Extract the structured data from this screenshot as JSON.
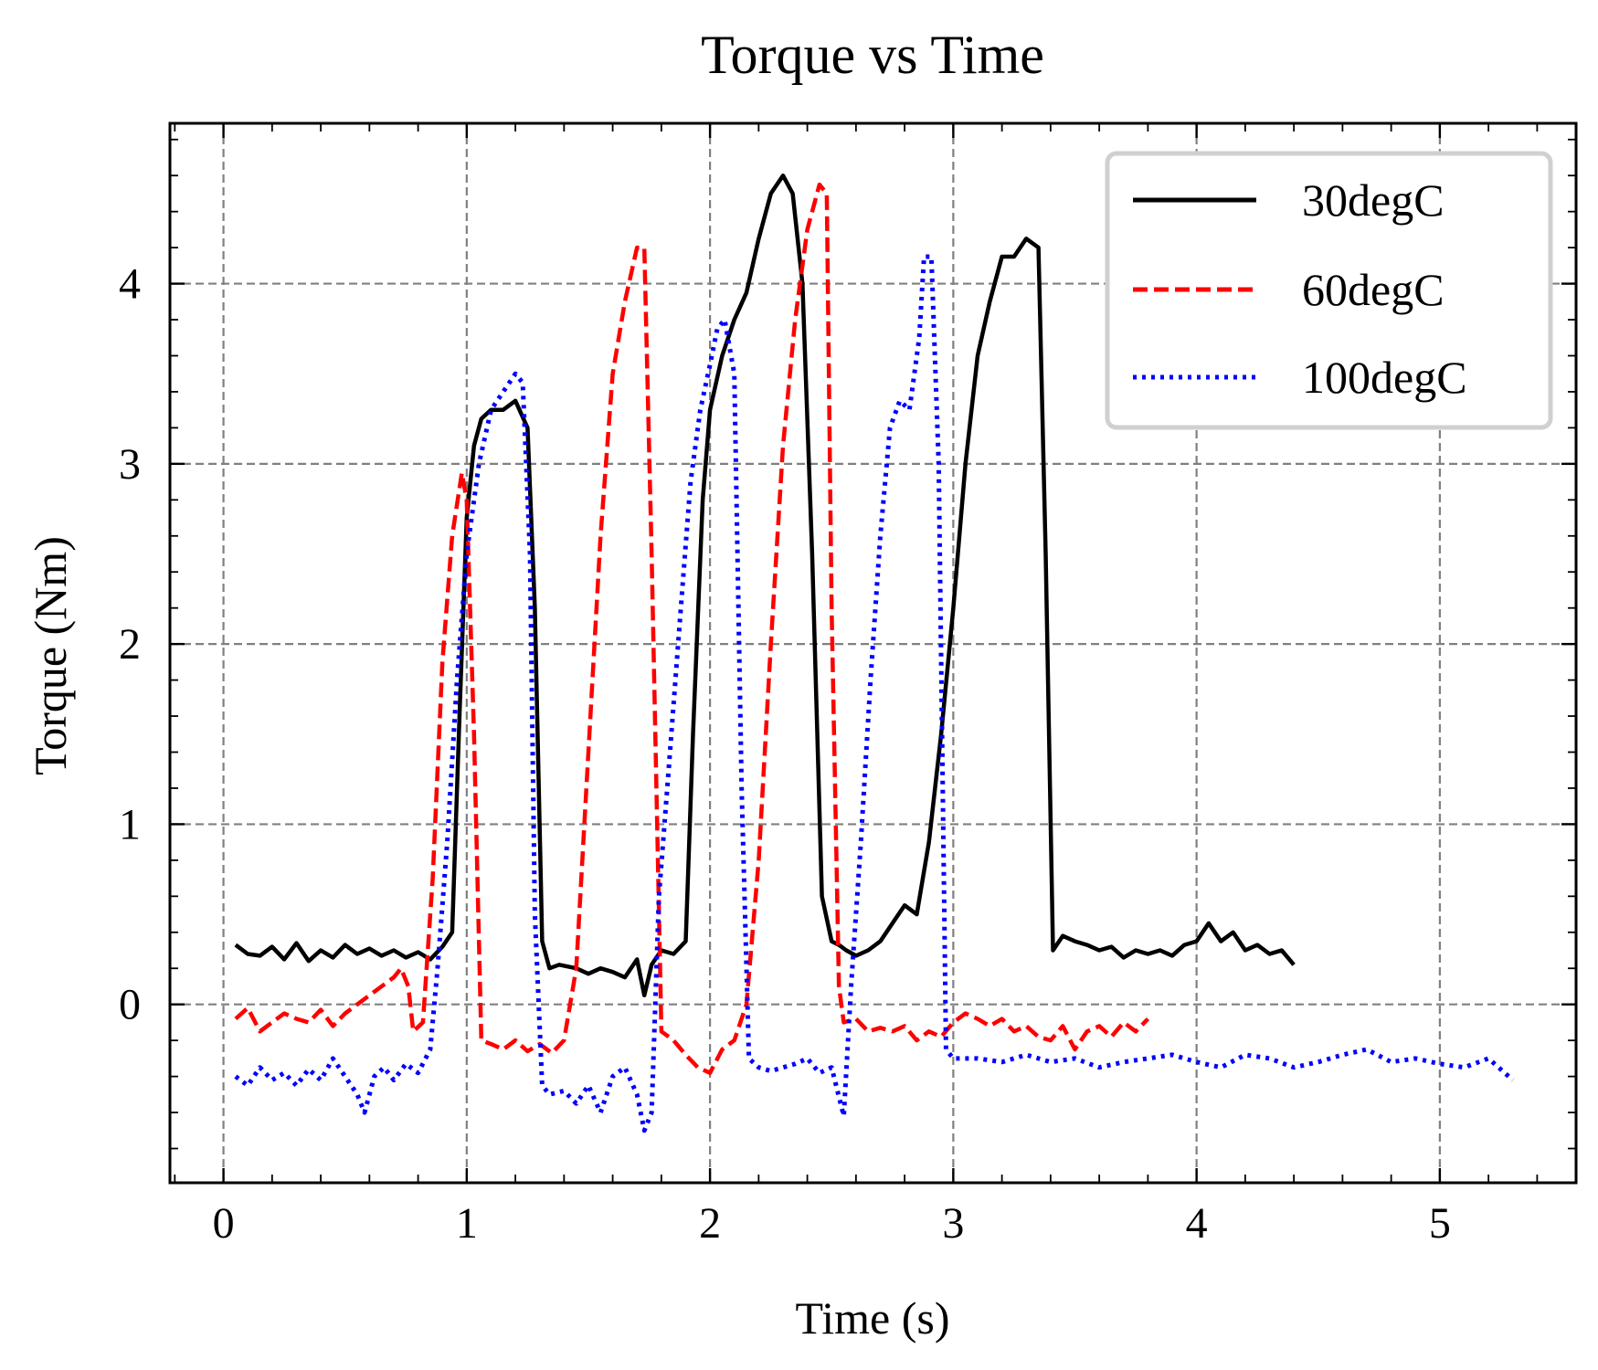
{
  "chart_data": {
    "type": "line",
    "title": "Torque vs Time",
    "xlabel": "Time (s)",
    "ylabel": "Torque (Nm)",
    "xlim": [
      -0.22,
      5.56
    ],
    "ylim": [
      -0.99,
      4.89
    ],
    "xticks": [
      0,
      1,
      2,
      3,
      4,
      5
    ],
    "yticks": [
      0,
      1,
      2,
      3,
      4
    ],
    "xtick_labels": [
      "0",
      "1",
      "2",
      "3",
      "4",
      "5"
    ],
    "ytick_labels": [
      "0",
      "1",
      "2",
      "3",
      "4"
    ],
    "x_minor_step": 0.2,
    "y_minor_step": 0.2,
    "grid": true,
    "legend_position": "top-right",
    "series": [
      {
        "name": "30degC",
        "color": "#000000",
        "style": "solid",
        "x": [
          0.05,
          0.1,
          0.15,
          0.2,
          0.25,
          0.3,
          0.35,
          0.4,
          0.45,
          0.5,
          0.55,
          0.6,
          0.65,
          0.7,
          0.75,
          0.8,
          0.85,
          0.9,
          0.94,
          0.97,
          1.0,
          1.03,
          1.06,
          1.1,
          1.15,
          1.2,
          1.25,
          1.28,
          1.31,
          1.34,
          1.38,
          1.45,
          1.5,
          1.55,
          1.6,
          1.65,
          1.7,
          1.73,
          1.76,
          1.8,
          1.85,
          1.9,
          1.93,
          1.97,
          2.0,
          2.05,
          2.1,
          2.15,
          2.2,
          2.25,
          2.3,
          2.34,
          2.38,
          2.42,
          2.46,
          2.5,
          2.53,
          2.56,
          2.6,
          2.65,
          2.7,
          2.75,
          2.8,
          2.85,
          2.9,
          2.95,
          3.0,
          3.05,
          3.1,
          3.15,
          3.2,
          3.25,
          3.3,
          3.35,
          3.38,
          3.41,
          3.45,
          3.5,
          3.55,
          3.6,
          3.65,
          3.7,
          3.75,
          3.8,
          3.85,
          3.9,
          3.95,
          4.0,
          4.05,
          4.1,
          4.15,
          4.2,
          4.25,
          4.3,
          4.35,
          4.4
        ],
        "values": [
          0.33,
          0.28,
          0.27,
          0.32,
          0.25,
          0.34,
          0.24,
          0.3,
          0.26,
          0.33,
          0.28,
          0.31,
          0.27,
          0.3,
          0.26,
          0.29,
          0.25,
          0.32,
          0.4,
          1.6,
          2.7,
          3.1,
          3.25,
          3.3,
          3.3,
          3.35,
          3.2,
          2.2,
          0.35,
          0.2,
          0.22,
          0.2,
          0.17,
          0.2,
          0.18,
          0.15,
          0.25,
          0.05,
          0.22,
          0.3,
          0.28,
          0.35,
          1.5,
          2.8,
          3.3,
          3.6,
          3.8,
          3.95,
          4.25,
          4.5,
          4.6,
          4.5,
          4.0,
          2.5,
          0.6,
          0.35,
          0.33,
          0.3,
          0.27,
          0.3,
          0.35,
          0.45,
          0.55,
          0.5,
          0.9,
          1.5,
          2.2,
          3.0,
          3.6,
          3.9,
          4.15,
          4.15,
          4.25,
          4.2,
          2.5,
          0.3,
          0.38,
          0.35,
          0.33,
          0.3,
          0.32,
          0.26,
          0.3,
          0.28,
          0.3,
          0.27,
          0.33,
          0.35,
          0.45,
          0.35,
          0.4,
          0.3,
          0.33,
          0.28,
          0.3,
          0.22
        ]
      },
      {
        "name": "60degC",
        "color": "#ff0000",
        "style": "dashed",
        "x": [
          0.05,
          0.1,
          0.15,
          0.2,
          0.25,
          0.3,
          0.35,
          0.4,
          0.45,
          0.5,
          0.55,
          0.6,
          0.65,
          0.7,
          0.73,
          0.76,
          0.78,
          0.82,
          0.86,
          0.9,
          0.94,
          0.98,
          1.0,
          1.03,
          1.06,
          1.1,
          1.15,
          1.2,
          1.25,
          1.3,
          1.35,
          1.4,
          1.45,
          1.5,
          1.55,
          1.6,
          1.65,
          1.7,
          1.73,
          1.76,
          1.8,
          1.85,
          1.9,
          1.95,
          2.0,
          2.05,
          2.1,
          2.15,
          2.2,
          2.25,
          2.3,
          2.35,
          2.4,
          2.45,
          2.48,
          2.5,
          2.53,
          2.55,
          2.6,
          2.65,
          2.7,
          2.75,
          2.8,
          2.85,
          2.9,
          2.95,
          3.0,
          3.05,
          3.1,
          3.15,
          3.2,
          3.25,
          3.3,
          3.35,
          3.4,
          3.45,
          3.5,
          3.55,
          3.6,
          3.65,
          3.7,
          3.75,
          3.8
        ],
        "values": [
          -0.08,
          -0.02,
          -0.15,
          -0.1,
          -0.05,
          -0.08,
          -0.1,
          -0.03,
          -0.12,
          -0.05,
          0.0,
          0.05,
          0.1,
          0.15,
          0.2,
          0.1,
          -0.15,
          -0.1,
          0.7,
          1.9,
          2.6,
          2.95,
          2.8,
          1.5,
          -0.2,
          -0.22,
          -0.25,
          -0.2,
          -0.26,
          -0.22,
          -0.27,
          -0.2,
          0.2,
          1.4,
          2.6,
          3.5,
          3.9,
          4.2,
          4.2,
          2.5,
          -0.15,
          -0.2,
          -0.28,
          -0.35,
          -0.38,
          -0.25,
          -0.2,
          0.0,
          0.8,
          2.0,
          3.1,
          3.8,
          4.3,
          4.55,
          4.5,
          2.2,
          0.1,
          -0.1,
          -0.08,
          -0.15,
          -0.13,
          -0.15,
          -0.12,
          -0.2,
          -0.15,
          -0.18,
          -0.1,
          -0.05,
          -0.08,
          -0.12,
          -0.08,
          -0.15,
          -0.12,
          -0.18,
          -0.2,
          -0.12,
          -0.25,
          -0.15,
          -0.12,
          -0.18,
          -0.1,
          -0.15,
          -0.08
        ]
      },
      {
        "name": "100degC",
        "color": "#0000ff",
        "style": "dotted",
        "x": [
          0.05,
          0.1,
          0.15,
          0.2,
          0.25,
          0.3,
          0.35,
          0.4,
          0.45,
          0.5,
          0.55,
          0.58,
          0.62,
          0.66,
          0.7,
          0.75,
          0.8,
          0.85,
          0.88,
          0.92,
          0.96,
          1.0,
          1.05,
          1.1,
          1.15,
          1.2,
          1.23,
          1.26,
          1.28,
          1.31,
          1.34,
          1.4,
          1.45,
          1.5,
          1.55,
          1.6,
          1.65,
          1.7,
          1.73,
          1.76,
          1.79,
          1.83,
          1.88,
          1.92,
          1.96,
          2.0,
          2.03,
          2.06,
          2.1,
          2.13,
          2.16,
          2.2,
          2.25,
          2.3,
          2.35,
          2.4,
          2.45,
          2.5,
          2.55,
          2.58,
          2.62,
          2.66,
          2.7,
          2.74,
          2.78,
          2.82,
          2.86,
          2.88,
          2.91,
          2.94,
          2.97,
          3.0,
          3.1,
          3.2,
          3.3,
          3.4,
          3.5,
          3.6,
          3.7,
          3.8,
          3.9,
          4.0,
          4.1,
          4.2,
          4.3,
          4.4,
          4.5,
          4.6,
          4.7,
          4.8,
          4.9,
          5.0,
          5.1,
          5.2,
          5.3
        ],
        "values": [
          -0.4,
          -0.45,
          -0.35,
          -0.42,
          -0.38,
          -0.45,
          -0.36,
          -0.42,
          -0.3,
          -0.4,
          -0.5,
          -0.6,
          -0.4,
          -0.35,
          -0.42,
          -0.33,
          -0.38,
          -0.25,
          0.2,
          0.9,
          1.8,
          2.5,
          3.0,
          3.3,
          3.4,
          3.5,
          3.45,
          2.5,
          0.5,
          -0.45,
          -0.5,
          -0.48,
          -0.55,
          -0.45,
          -0.6,
          -0.4,
          -0.35,
          -0.5,
          -0.7,
          -0.6,
          0.6,
          1.3,
          2.2,
          2.9,
          3.3,
          3.55,
          3.75,
          3.8,
          3.5,
          1.2,
          -0.3,
          -0.35,
          -0.37,
          -0.35,
          -0.33,
          -0.3,
          -0.38,
          -0.35,
          -0.62,
          0.1,
          0.9,
          1.8,
          2.6,
          3.2,
          3.35,
          3.3,
          3.7,
          4.15,
          4.15,
          3.0,
          -0.25,
          -0.3,
          -0.3,
          -0.32,
          -0.28,
          -0.32,
          -0.3,
          -0.35,
          -0.32,
          -0.3,
          -0.28,
          -0.32,
          -0.35,
          -0.28,
          -0.3,
          -0.35,
          -0.32,
          -0.28,
          -0.25,
          -0.32,
          -0.3,
          -0.33,
          -0.35,
          -0.3,
          -0.42
        ]
      }
    ]
  }
}
